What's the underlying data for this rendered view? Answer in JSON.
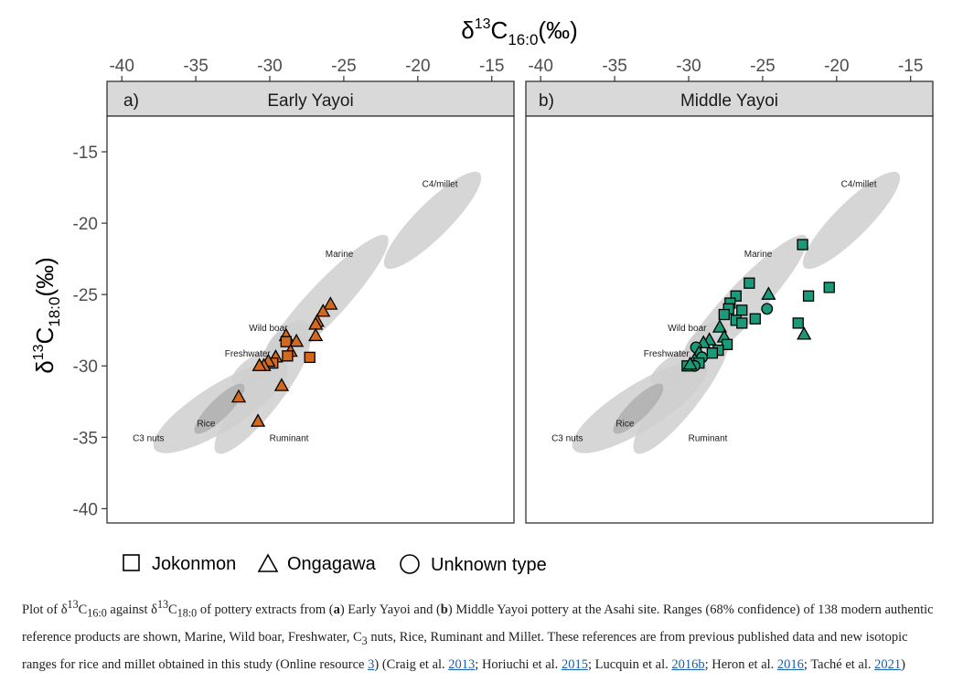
{
  "axes": {
    "x_title": {
      "symbol": "δ",
      "sup": "13",
      "base": "C",
      "sub": "16:0",
      "unit": "(‰)"
    },
    "y_title": {
      "symbol": "δ",
      "sup": "13",
      "base": "C",
      "sub": "18:0",
      "unit": "(‰)"
    }
  },
  "chart_data": {
    "type": "scatter",
    "xlim": [
      -41,
      -13.5
    ],
    "ylim": [
      -41,
      -12.5
    ],
    "x_ticks": [
      -40,
      -35,
      -30,
      -25,
      -20,
      -15
    ],
    "y_ticks": [
      -15,
      -20,
      -25,
      -30,
      -35,
      -40
    ],
    "grid": false,
    "legend_position": "bottom",
    "reference_labels": [
      {
        "text": "C4/millet",
        "x": -18.5,
        "y": -17.2
      },
      {
        "text": "Marine",
        "x": -25.3,
        "y": -22.1
      },
      {
        "text": "Wild boar",
        "x": -30.1,
        "y": -27.3
      },
      {
        "text": "Freshwater",
        "x": -31.5,
        "y": -29.1
      },
      {
        "text": "Rice",
        "x": -34.3,
        "y": -34.0
      },
      {
        "text": "C3 nuts",
        "x": -38.2,
        "y": -35.0
      },
      {
        "text": "Ruminant",
        "x": -28.7,
        "y": -35.0
      }
    ],
    "reference_ellipses": [
      {
        "name": "C4/millet",
        "cx": -19.0,
        "cy": -19.8,
        "rx": 4.5,
        "ry": 1.2,
        "angle": 45
      },
      {
        "name": "Marine",
        "cx": -26.3,
        "cy": -25.6,
        "rx": 6.2,
        "ry": 1.3,
        "angle": 47
      },
      {
        "name": "Wild boar",
        "cx": -28.8,
        "cy": -28.2,
        "rx": 1.8,
        "ry": 0.9,
        "angle": 40
      },
      {
        "name": "Freshwater",
        "cx": -30.6,
        "cy": -30.0,
        "rx": 2.2,
        "ry": 0.9,
        "angle": 30
      },
      {
        "name": "C3 nuts",
        "cx": -33.3,
        "cy": -32.9,
        "rx": 5.3,
        "ry": 1.6,
        "angle": 32
      },
      {
        "name": "Ruminant",
        "cx": -30.5,
        "cy": -32.0,
        "rx": 5.0,
        "ry": 1.3,
        "angle": 52
      },
      {
        "name": "Rice",
        "cx": -33.4,
        "cy": -33.0,
        "rx": 2.3,
        "ry": 0.7,
        "angle": 45,
        "dark": true
      }
    ],
    "panels": [
      {
        "tag": "a)",
        "title": "Early Yayoi",
        "color": "#d2691e",
        "points": [
          {
            "shape": "triangle",
            "x": -25.9,
            "y": -25.7
          },
          {
            "shape": "triangle",
            "x": -26.4,
            "y": -26.2
          },
          {
            "shape": "triangle",
            "x": -26.8,
            "y": -26.9
          },
          {
            "shape": "triangle",
            "x": -26.9,
            "y": -27.1
          },
          {
            "shape": "triangle",
            "x": -26.9,
            "y": -27.9
          },
          {
            "shape": "triangle",
            "x": -28.2,
            "y": -28.3
          },
          {
            "shape": "triangle",
            "x": -28.9,
            "y": -27.9
          },
          {
            "shape": "square",
            "x": -28.9,
            "y": -28.3
          },
          {
            "shape": "triangle",
            "x": -28.6,
            "y": -29.0
          },
          {
            "shape": "square",
            "x": -28.8,
            "y": -29.3
          },
          {
            "shape": "triangle",
            "x": -29.6,
            "y": -29.4
          },
          {
            "shape": "square",
            "x": -29.8,
            "y": -29.8
          },
          {
            "shape": "triangle",
            "x": -30.1,
            "y": -29.7
          },
          {
            "shape": "triangle",
            "x": -30.4,
            "y": -30.0
          },
          {
            "shape": "triangle",
            "x": -30.7,
            "y": -30.0
          },
          {
            "shape": "square",
            "x": -27.3,
            "y": -29.4
          },
          {
            "shape": "triangle",
            "x": -29.2,
            "y": -31.4
          },
          {
            "shape": "triangle",
            "x": -32.1,
            "y": -32.2
          },
          {
            "shape": "triangle",
            "x": -30.8,
            "y": -33.9
          }
        ]
      },
      {
        "tag": "b)",
        "title": "Middle Yayoi",
        "color": "#1a9a78",
        "points": [
          {
            "shape": "square",
            "x": -22.3,
            "y": -21.5
          },
          {
            "shape": "triangle",
            "x": -24.6,
            "y": -25.0
          },
          {
            "shape": "square",
            "x": -25.9,
            "y": -24.2
          },
          {
            "shape": "square",
            "x": -26.8,
            "y": -25.1
          },
          {
            "shape": "square",
            "x": -27.2,
            "y": -25.6
          },
          {
            "shape": "square",
            "x": -27.3,
            "y": -26.0
          },
          {
            "shape": "square",
            "x": -27.6,
            "y": -26.4
          },
          {
            "shape": "square",
            "x": -26.4,
            "y": -26.1
          },
          {
            "shape": "circle",
            "x": -24.7,
            "y": -26.0
          },
          {
            "shape": "square",
            "x": -25.5,
            "y": -26.7
          },
          {
            "shape": "square",
            "x": -26.8,
            "y": -26.8
          },
          {
            "shape": "square",
            "x": -26.4,
            "y": -27.0
          },
          {
            "shape": "square",
            "x": -21.9,
            "y": -25.1
          },
          {
            "shape": "square",
            "x": -20.5,
            "y": -24.5
          },
          {
            "shape": "square",
            "x": -22.6,
            "y": -27.0
          },
          {
            "shape": "triangle",
            "x": -22.2,
            "y": -27.8
          },
          {
            "shape": "triangle",
            "x": -27.9,
            "y": -27.3
          },
          {
            "shape": "triangle",
            "x": -27.6,
            "y": -28.0
          },
          {
            "shape": "square",
            "x": -27.4,
            "y": -28.5
          },
          {
            "shape": "triangle",
            "x": -28.6,
            "y": -28.2
          },
          {
            "shape": "triangle",
            "x": -29.0,
            "y": -28.4
          },
          {
            "shape": "square",
            "x": -28.0,
            "y": -28.9
          },
          {
            "shape": "square",
            "x": -28.4,
            "y": -29.1
          },
          {
            "shape": "circle",
            "x": -29.5,
            "y": -28.7
          },
          {
            "shape": "triangle",
            "x": -29.3,
            "y": -29.1
          },
          {
            "shape": "circle",
            "x": -29.1,
            "y": -29.4
          },
          {
            "shape": "triangle",
            "x": -29.6,
            "y": -29.6
          },
          {
            "shape": "square",
            "x": -29.3,
            "y": -29.8
          },
          {
            "shape": "circle",
            "x": -29.6,
            "y": -30.0
          },
          {
            "shape": "square",
            "x": -30.1,
            "y": -30.0
          },
          {
            "shape": "triangle",
            "x": -29.9,
            "y": -29.9
          }
        ]
      }
    ]
  },
  "legend": [
    {
      "shape": "square",
      "label": "Jokonmon"
    },
    {
      "shape": "triangle",
      "label": "Ongagawa"
    },
    {
      "shape": "circle",
      "label": "Unknown type"
    }
  ],
  "caption": {
    "p1": "Plot of ",
    "d1": "δ",
    "s1": "13",
    "c1": "C",
    "b1": "16:0",
    "p2": " against ",
    "d2": "δ",
    "s2": "13",
    "c2": "C",
    "b2": "18:0",
    "p3": " of pottery extracts from (",
    "bold_a": "a",
    "p4": ") Early Yayoi and (",
    "bold_b": "b",
    "p5": ") Middle Yayoi pottery at the Asahi site. Ranges (68% confidence) of 138 modern authentic reference products are shown, Marine, Wild boar, Freshwater, C",
    "sub3": "3",
    "p6": " nuts, Rice, Ruminant and Millet. These references are from previous published data and new isotopic ranges for rice and millet obtained in this study (Online resource ",
    "link1": "3",
    "p7": ") (Craig et al. ",
    "link2": "2013",
    "p8": "; Horiuchi et al. ",
    "link3": "2015",
    "p9": "; Lucquin et al. ",
    "link4": "2016b",
    "p10": "; Heron et al. ",
    "link5": "2016",
    "p11": "; Taché et al. ",
    "link6": "2021",
    "p12": ")"
  }
}
